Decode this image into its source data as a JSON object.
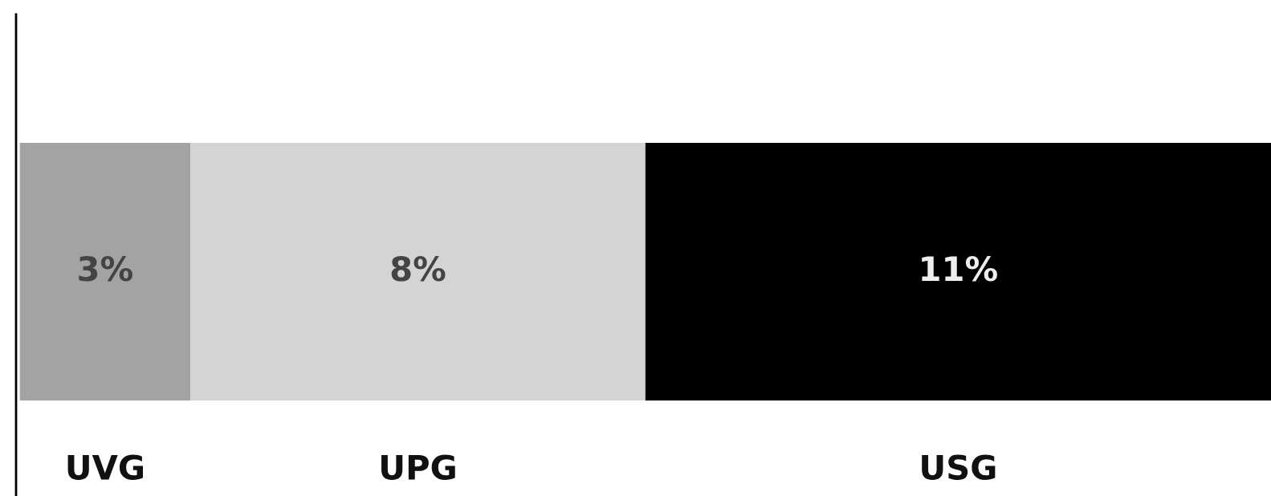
{
  "chart_data": {
    "type": "bar",
    "orientation": "horizontal",
    "stacked": true,
    "categories": [
      null
    ],
    "legend": false,
    "series": [
      {
        "name": "UVG",
        "color": "#a3a3a3",
        "values": [
          3
        ],
        "value_labels": [
          "3%"
        ]
      },
      {
        "name": "UPG",
        "color": "#d4d4d4",
        "values": [
          8
        ],
        "value_labels": [
          "8%"
        ]
      },
      {
        "name": "USG",
        "color": "#000000",
        "values": [
          11
        ],
        "value_labels": [
          "11%"
        ]
      }
    ]
  }
}
